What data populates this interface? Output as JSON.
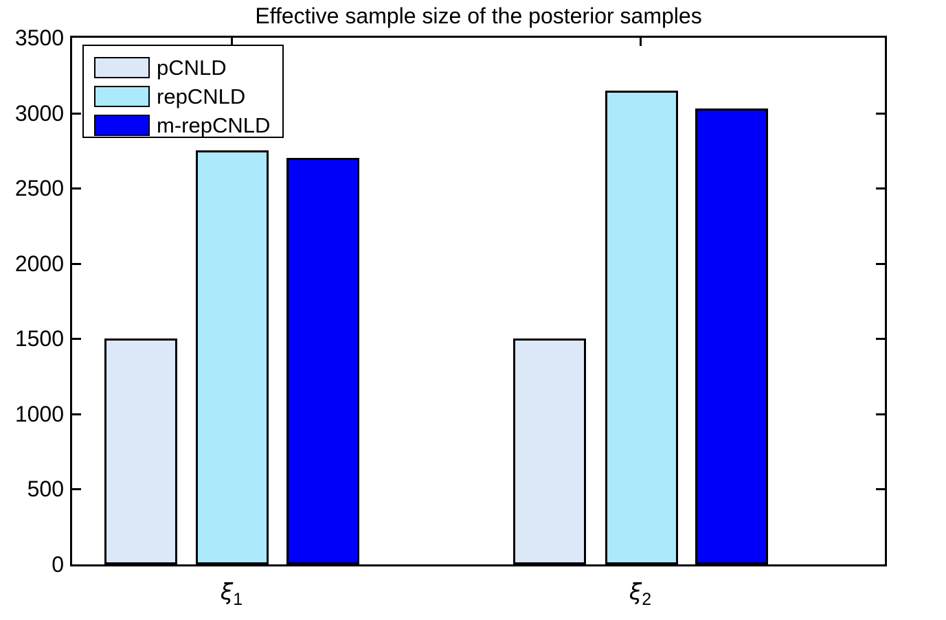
{
  "figure": {
    "background": "#ffffff",
    "axis_color": "#000000"
  },
  "chart_data": {
    "type": "bar",
    "title": "Effective sample size of the posterior samples",
    "categories": [
      {
        "symbol": "ξ",
        "sub": "1"
      },
      {
        "symbol": "ξ",
        "sub": "2"
      }
    ],
    "series": [
      {
        "name": "pCNLD",
        "color": "#dce7f8",
        "values": [
          1500,
          1500
        ]
      },
      {
        "name": "repCNLD",
        "color": "#abe9fb",
        "values": [
          2750,
          3150
        ]
      },
      {
        "name": "m-repCNLD",
        "color": "#0000fa",
        "values": [
          2700,
          3030
        ]
      }
    ],
    "xlabel": "",
    "ylabel": "",
    "ylim": [
      0,
      3500
    ],
    "yticks": [
      0,
      500,
      1000,
      1500,
      2000,
      2500,
      3000,
      3500
    ],
    "grid": false,
    "legend_position": "top-left",
    "bar_edge_color": "#000000"
  }
}
